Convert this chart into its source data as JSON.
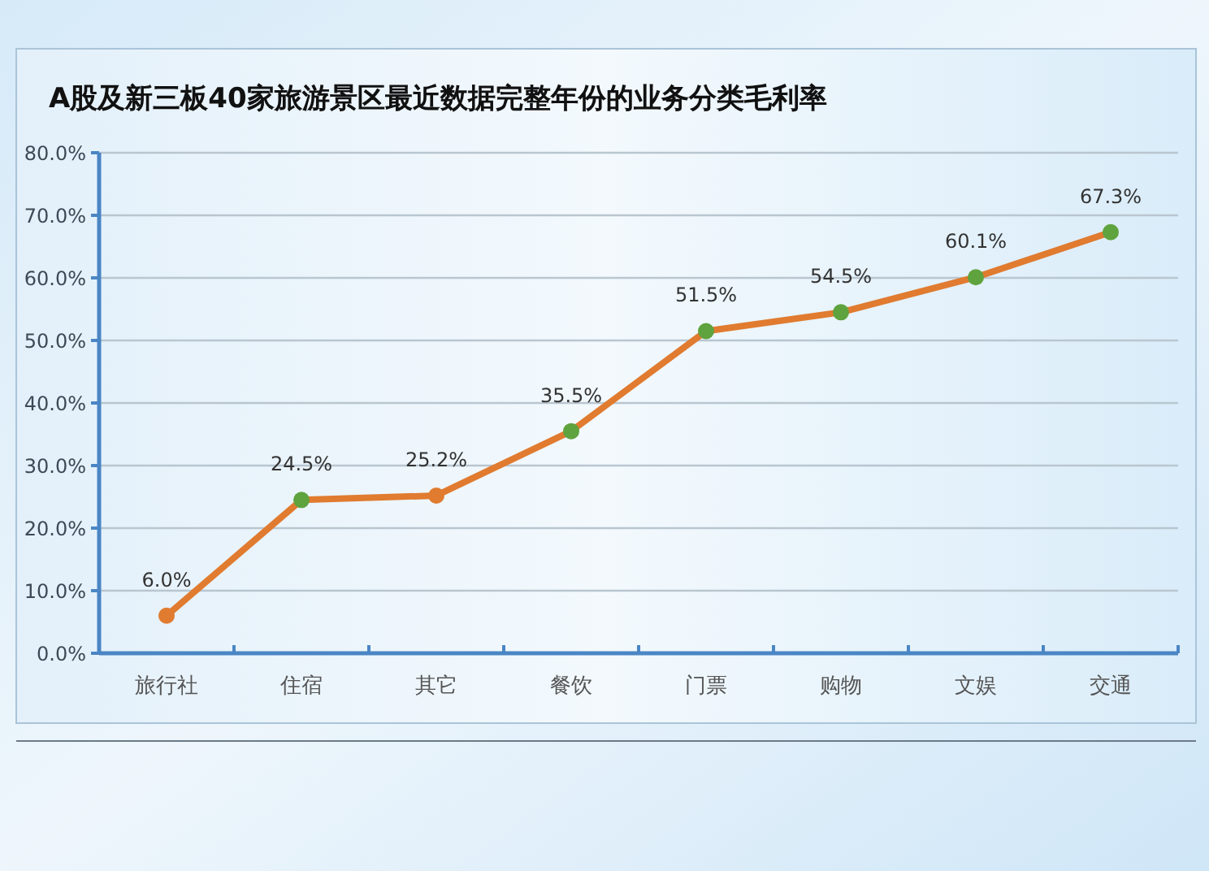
{
  "chart_data": {
    "type": "line",
    "title": "A股及新三板40家旅游景区最近数据完整年份的业务分类毛利率",
    "categories": [
      "旅行社",
      "住宿",
      "其它",
      "餐饮",
      "门票",
      "购物",
      "文娱",
      "交通"
    ],
    "series": [
      {
        "color": "#e07b30",
        "colors": [
          "#e07b30",
          "#5fa33e",
          "#e07b30",
          "#5fa33e",
          "#5fa33e",
          "#5fa33e",
          "#5fa33e",
          "#5fa33e"
        ],
        "values": [
          6.0,
          24.5,
          25.2,
          35.5,
          51.5,
          54.5,
          60.1,
          67.3
        ],
        "value_labels": [
          "6.0%",
          "24.5%",
          "25.2%",
          "35.5%",
          "51.5%",
          "54.5%",
          "60.1%",
          "67.3%"
        ]
      }
    ],
    "ylim": [
      0,
      80
    ],
    "yticks": [
      {
        "value": 0,
        "label": "0.0%"
      },
      {
        "value": 10,
        "label": "10.0%"
      },
      {
        "value": 20,
        "label": "20.0%"
      },
      {
        "value": 30,
        "label": "30.0%"
      },
      {
        "value": 40,
        "label": "40.0%"
      },
      {
        "value": 50,
        "label": "50.0%"
      },
      {
        "value": 60,
        "label": "60.0%"
      },
      {
        "value": 70,
        "label": "70.0%"
      },
      {
        "value": 80,
        "label": "80.0%"
      }
    ],
    "grid": "y",
    "marker": "circle",
    "line_style": "solid"
  }
}
